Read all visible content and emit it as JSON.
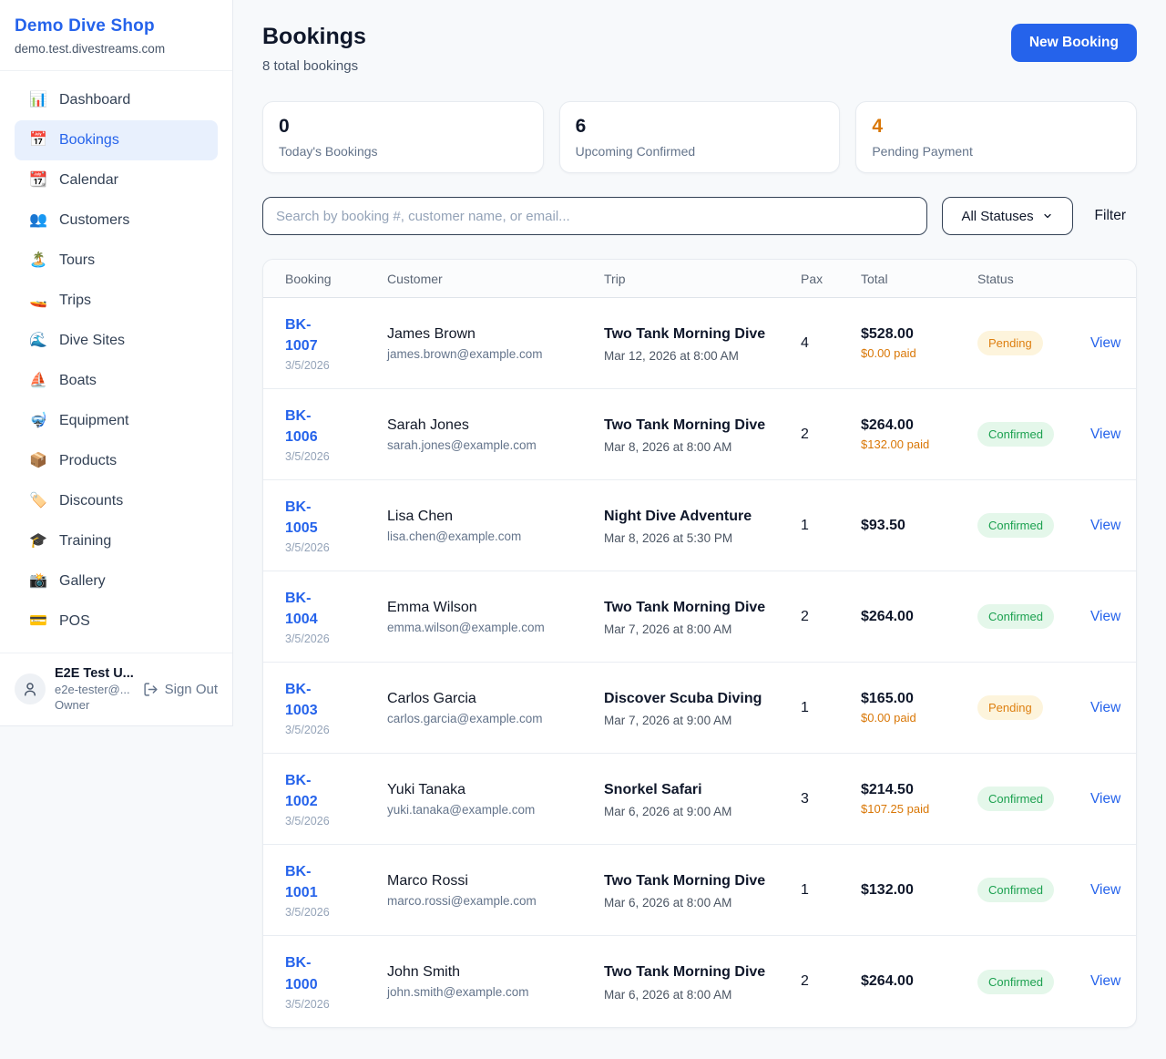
{
  "colors": {
    "accent_blue": "#2563eb",
    "accent_orange": "#d97706",
    "pending_bg": "#fdf4dc",
    "pending_text": "#dd7f10",
    "confirmed_bg": "#e4f7ea",
    "confirmed_text": "#1ca150",
    "page_bg": "#f7f9fb",
    "card_border": "#e7ebf0"
  },
  "sidebar": {
    "shop_name": "Demo Dive Shop",
    "domain": "demo.test.divestreams.com",
    "items": [
      {
        "slug": "dashboard",
        "icon": "📊",
        "label": "Dashboard",
        "active": false
      },
      {
        "slug": "bookings",
        "icon": "📅",
        "label": "Bookings",
        "active": true
      },
      {
        "slug": "calendar",
        "icon": "📆",
        "label": "Calendar",
        "active": false
      },
      {
        "slug": "customers",
        "icon": "👥",
        "label": "Customers",
        "active": false
      },
      {
        "slug": "tours",
        "icon": "🏝️",
        "label": "Tours",
        "active": false
      },
      {
        "slug": "trips",
        "icon": "🚤",
        "label": "Trips",
        "active": false
      },
      {
        "slug": "dive-sites",
        "icon": "🌊",
        "label": "Dive Sites",
        "active": false
      },
      {
        "slug": "boats",
        "icon": "⛵",
        "label": "Boats",
        "active": false
      },
      {
        "slug": "equipment",
        "icon": "🤿",
        "label": "Equipment",
        "active": false
      },
      {
        "slug": "products",
        "icon": "📦",
        "label": "Products",
        "active": false
      },
      {
        "slug": "discounts",
        "icon": "🏷️",
        "label": "Discounts",
        "active": false
      },
      {
        "slug": "training",
        "icon": "🎓",
        "label": "Training",
        "active": false
      },
      {
        "slug": "gallery",
        "icon": "📸",
        "label": "Gallery",
        "active": false
      },
      {
        "slug": "pos",
        "icon": "💳",
        "label": "POS",
        "active": false
      }
    ],
    "user": {
      "name": "E2E Test U...",
      "email": "e2e-tester@...",
      "role": "Owner",
      "sign_out_label": "Sign Out"
    }
  },
  "header": {
    "title": "Bookings",
    "subtitle": "8 total bookings",
    "new_booking_label": "New Booking"
  },
  "stats": [
    {
      "value": "0",
      "label": "Today's Bookings",
      "accent": false
    },
    {
      "value": "6",
      "label": "Upcoming Confirmed",
      "accent": false
    },
    {
      "value": "4",
      "label": "Pending Payment",
      "accent": true
    }
  ],
  "filters": {
    "search_placeholder": "Search by booking #, customer name, or email...",
    "status_select_value": "All Statuses",
    "filter_label": "Filter"
  },
  "table": {
    "columns": [
      "Booking",
      "Customer",
      "Trip",
      "Pax",
      "Total",
      "Status"
    ],
    "view_label": "View",
    "rows": [
      {
        "id": "BK-1007",
        "date": "3/5/2026",
        "customer": "James Brown",
        "email": "james.brown@example.com",
        "trip": "Two Tank Morning Dive",
        "trip_date": "Mar 12, 2026 at 8:00 AM",
        "pax": "4",
        "total": "$528.00",
        "paid": "$0.00 paid",
        "status": "Pending"
      },
      {
        "id": "BK-1006",
        "date": "3/5/2026",
        "customer": "Sarah Jones",
        "email": "sarah.jones@example.com",
        "trip": "Two Tank Morning Dive",
        "trip_date": "Mar 8, 2026 at 8:00 AM",
        "pax": "2",
        "total": "$264.00",
        "paid": "$132.00 paid",
        "status": "Confirmed"
      },
      {
        "id": "BK-1005",
        "date": "3/5/2026",
        "customer": "Lisa Chen",
        "email": "lisa.chen@example.com",
        "trip": "Night Dive Adventure",
        "trip_date": "Mar 8, 2026 at 5:30 PM",
        "pax": "1",
        "total": "$93.50",
        "paid": null,
        "status": "Confirmed"
      },
      {
        "id": "BK-1004",
        "date": "3/5/2026",
        "customer": "Emma Wilson",
        "email": "emma.wilson@example.com",
        "trip": "Two Tank Morning Dive",
        "trip_date": "Mar 7, 2026 at 8:00 AM",
        "pax": "2",
        "total": "$264.00",
        "paid": null,
        "status": "Confirmed"
      },
      {
        "id": "BK-1003",
        "date": "3/5/2026",
        "customer": "Carlos Garcia",
        "email": "carlos.garcia@example.com",
        "trip": "Discover Scuba Diving",
        "trip_date": "Mar 7, 2026 at 9:00 AM",
        "pax": "1",
        "total": "$165.00",
        "paid": "$0.00 paid",
        "status": "Pending"
      },
      {
        "id": "BK-1002",
        "date": "3/5/2026",
        "customer": "Yuki Tanaka",
        "email": "yuki.tanaka@example.com",
        "trip": "Snorkel Safari",
        "trip_date": "Mar 6, 2026 at 9:00 AM",
        "pax": "3",
        "total": "$214.50",
        "paid": "$107.25 paid",
        "status": "Confirmed"
      },
      {
        "id": "BK-1001",
        "date": "3/5/2026",
        "customer": "Marco Rossi",
        "email": "marco.rossi@example.com",
        "trip": "Two Tank Morning Dive",
        "trip_date": "Mar 6, 2026 at 8:00 AM",
        "pax": "1",
        "total": "$132.00",
        "paid": null,
        "status": "Confirmed"
      },
      {
        "id": "BK-1000",
        "date": "3/5/2026",
        "customer": "John Smith",
        "email": "john.smith@example.com",
        "trip": "Two Tank Morning Dive",
        "trip_date": "Mar 6, 2026 at 8:00 AM",
        "pax": "2",
        "total": "$264.00",
        "paid": null,
        "status": "Confirmed"
      }
    ]
  }
}
